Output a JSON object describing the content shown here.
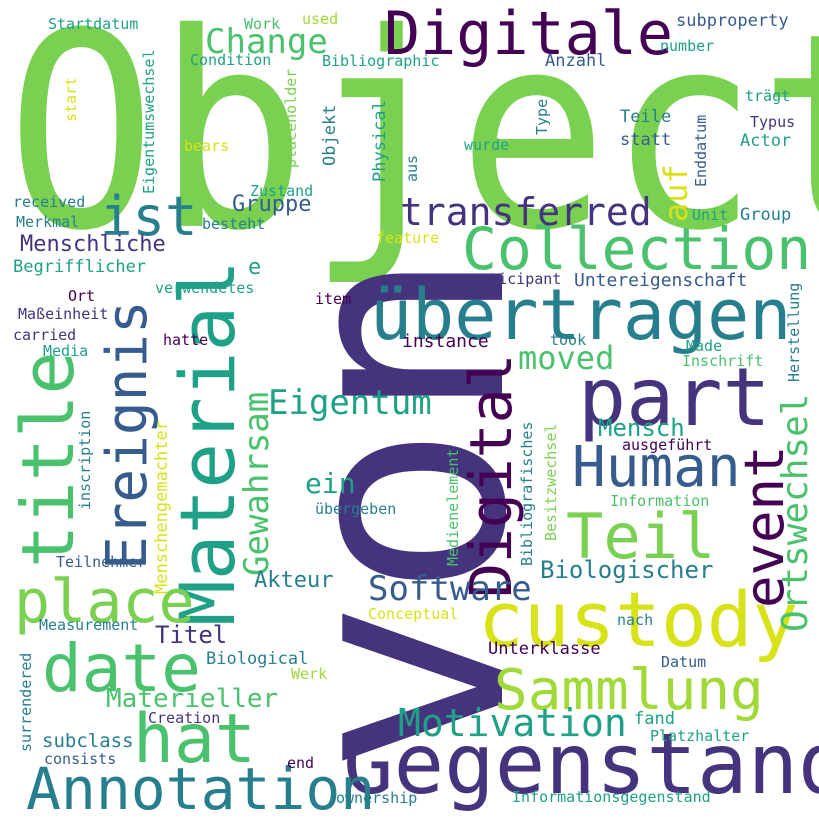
{
  "colors": {
    "background": "#ffffff",
    "dark_purple": "#440154",
    "indigo": "#46337e",
    "blue": "#365c8d",
    "teal_blue": "#277f8e",
    "teal": "#1fa187",
    "green": "#4ac16d",
    "light_green": "#7ad151",
    "lime": "#a0da39",
    "yellow": "#d8e219"
  },
  "words": {
    "object": "Object",
    "von": "von",
    "gegenstand": "Gegenstand",
    "digitale": "Digitale",
    "ubertragen": "übertragen",
    "collection": "Collection",
    "custody": "custody",
    "material": "Material",
    "part": "part",
    "title": "title",
    "annotation": "Annotation",
    "hat": "hat",
    "date": "date",
    "place": "place",
    "human": "Human",
    "sammlung": "Sammlung",
    "digital": "Digital",
    "event": "event",
    "teil": "Teil",
    "ereignis": "Ereignis",
    "ist": "ist",
    "transferred": "transferred",
    "motivation": "Motivation",
    "ortswechsel": "Ortswechsel",
    "software": "Software",
    "eigentum": "Eigentum",
    "gewahrsam": "Gewahrsam",
    "change": "Change",
    "auf": "auf",
    "moved": "moved",
    "menschliche": "Menschliche",
    "materieller": "Materieller",
    "biologischer": "Biologischer",
    "ein": "ein",
    "mensch": "Mensch",
    "akteur": "Akteur",
    "titel": "Titel",
    "gruppe": "Gruppe",
    "untereigenschaft": "Untereigenschaft",
    "instance": "instance",
    "subproperty": "subproperty",
    "startdatum": "Startdatum",
    "work": "Work",
    "used": "used",
    "eigentumswechsel": "Eigentumswechsel",
    "condition": "Condition",
    "bibliographic": "Bibliographic",
    "anzahl": "Anzahl",
    "number": "number",
    "start": "start",
    "placeholder": "placeholder",
    "objekt": "Objekt",
    "physical": "Physical",
    "tragt": "trägt",
    "type": "Type",
    "teile": "Teile",
    "typus": "Typus",
    "bears": "bears",
    "statt": "statt",
    "enddatum": "Enddatum",
    "actor": "Actor",
    "wurde": "wurde",
    "aus": "aus",
    "zustand": "Zustand",
    "received": "received",
    "merkmal": "Merkmal",
    "besteht": "besteht",
    "unit": "Unit",
    "group": "Group",
    "feature": "feature",
    "e": "e",
    "begrifflicher": "Begrifflicher",
    "participant": "participant",
    "herstellung": "Herstellung",
    "ort": "Ort",
    "verwendetes": "verwendetes",
    "item": "item",
    "massenheit": "Maßeinheit",
    "carried": "carried",
    "hatte": "hatte",
    "took": "took",
    "made": "Made",
    "media": "Media",
    "inschrift": "Inschrift",
    "menschengemachter": "Menschengemachter",
    "inscription": "inscription",
    "medienelement": "Medienelement",
    "bibliografisches": "Bibliografisches",
    "besitzwechsel": "Besitzwechsel",
    "ausgefuhrt": "ausgeführt",
    "information": "Information",
    "ubergeben": "übergeben",
    "teilnehmer": "Teilnehmer",
    "conceptual": "Conceptual",
    "nach": "nach",
    "measurement": "Measurement",
    "unterklasse": "Unterklasse",
    "biological": "Biological",
    "datum": "Datum",
    "werk": "Werk",
    "surrendered": "surrendered",
    "creation": "Creation",
    "fand": "fand",
    "subclass": "subclass",
    "platzhalter": "Platzhalter",
    "consists": "consists",
    "end": "end",
    "ownership": "ownership",
    "informationsgegenstand": "Informationsgegenstand"
  }
}
